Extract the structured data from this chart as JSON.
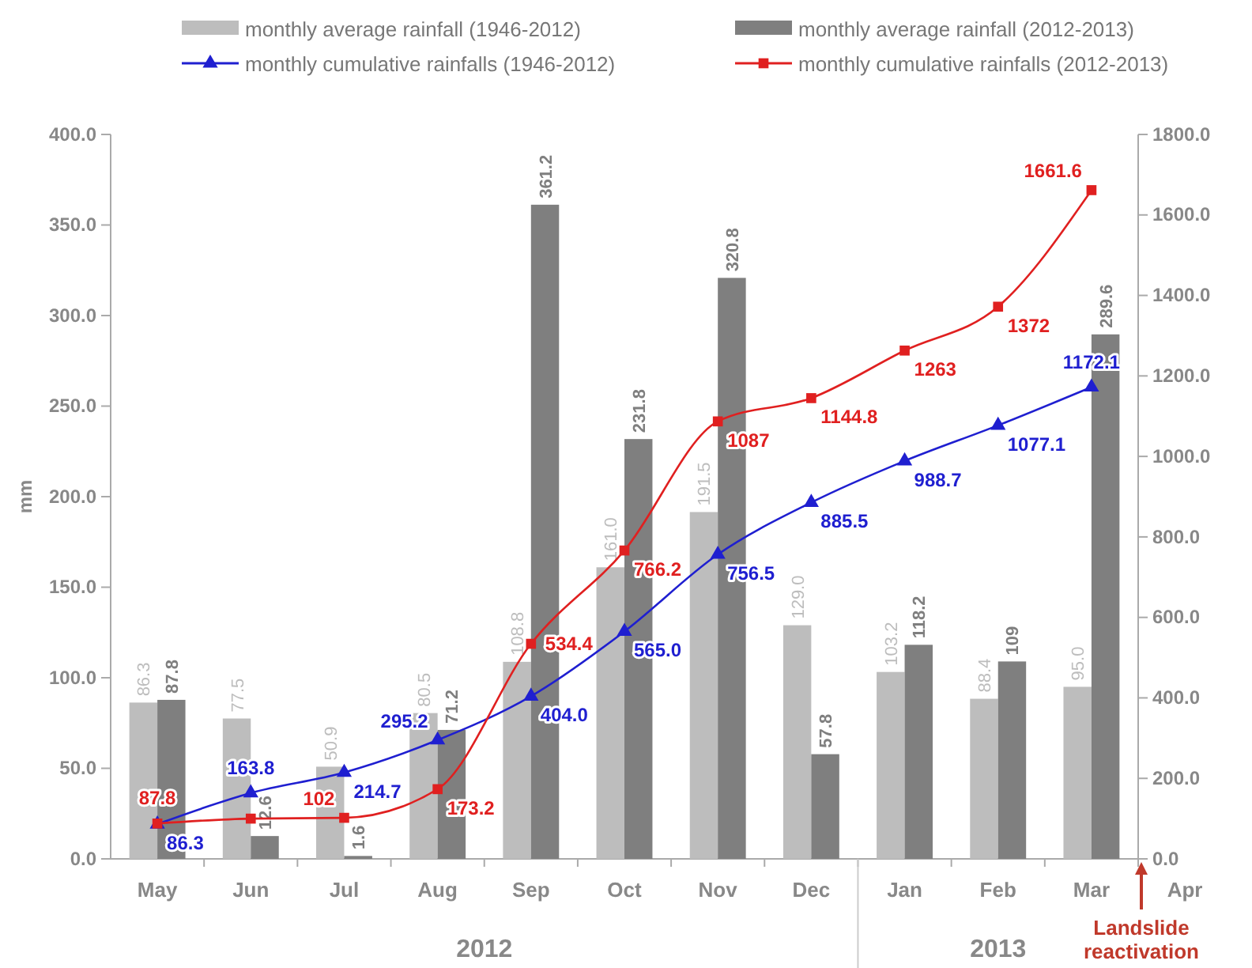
{
  "chart_data": {
    "type": "bar",
    "ylabel": "mm",
    "categories": [
      "May",
      "Jun",
      "Jul",
      "Aug",
      "Sep",
      "Oct",
      "Nov",
      "Dec",
      "Jan",
      "Feb",
      "Mar",
      "Apr"
    ],
    "series": [
      {
        "name": "monthly average rainfall (1946-2012)",
        "color": "#bdbdbd",
        "values": [
          86.3,
          77.5,
          50.9,
          80.5,
          108.8,
          161.0,
          191.5,
          129.0,
          103.2,
          88.4,
          95.0,
          null
        ],
        "value_labels": [
          "86.3",
          "77.5",
          "50.9",
          "80.5",
          "108.8",
          "161.0",
          "191.5",
          "129.0",
          "103.2",
          "88.4",
          "95.0",
          null
        ]
      },
      {
        "name": "monthly average rainfall (2012-2013)",
        "color": "#7f7f7f",
        "values": [
          87.8,
          12.6,
          1.6,
          71.2,
          361.2,
          231.8,
          320.8,
          57.8,
          118.2,
          109,
          289.6,
          null
        ],
        "value_labels": [
          "87.8",
          "12.6",
          "1.6",
          "71.2",
          "361.2",
          "231.8",
          "320.8",
          "57.8",
          "118.2",
          "109",
          "289.6",
          null
        ]
      },
      {
        "name": "monthly cumulative rainfalls (1946-2012)",
        "type": "line",
        "axis": "y2",
        "marker": "triangle",
        "color": "#1f1fd0",
        "values": [
          86.3,
          163.8,
          214.7,
          295.2,
          404.0,
          565.0,
          756.5,
          885.5,
          988.7,
          1077.1,
          1172.1,
          null
        ],
        "value_labels": [
          "86.3",
          "163.8",
          "214.7",
          "295.2",
          "404.0",
          "565.0",
          "756.5",
          "885.5",
          "988.7",
          "1077.1",
          "1172.1",
          null
        ]
      },
      {
        "name": "monthly cumulative rainfalls (2012-2013)",
        "type": "line",
        "axis": "y2",
        "marker": "square",
        "color": "#e02020",
        "values": [
          87.8,
          100,
          102,
          173.2,
          534.4,
          766.2,
          1087,
          1144.8,
          1263,
          1372,
          1661.6,
          null
        ],
        "value_labels": [
          "87.8",
          null,
          "102",
          "173.2",
          "534.4",
          "766.2",
          "1087",
          "1144.8",
          "1263",
          "1372",
          "1661.6",
          null
        ]
      }
    ],
    "ylim": [
      0,
      400
    ],
    "yticks": [
      {
        "value": 0,
        "label": "0.0"
      },
      {
        "value": 50,
        "label": "50.0"
      },
      {
        "value": 100,
        "label": "100.0"
      },
      {
        "value": 150,
        "label": "150.0"
      },
      {
        "value": 200,
        "label": "200.0"
      },
      {
        "value": 250,
        "label": "250.0"
      },
      {
        "value": 300,
        "label": "300.0"
      },
      {
        "value": 350,
        "label": "350.0"
      },
      {
        "value": 400,
        "label": "400.0"
      }
    ],
    "y2lim": [
      0,
      1800
    ],
    "y2ticks": [
      {
        "value": 0,
        "label": "0.0"
      },
      {
        "value": 200,
        "label": "200.0"
      },
      {
        "value": 400,
        "label": "400.0"
      },
      {
        "value": 600,
        "label": "600.0"
      },
      {
        "value": 800,
        "label": "800.0"
      },
      {
        "value": 1000,
        "label": "1000.0"
      },
      {
        "value": 1200,
        "label": "1200.0"
      },
      {
        "value": 1400,
        "label": "1400.0"
      },
      {
        "value": 1600,
        "label": "1600.0"
      },
      {
        "value": 1800,
        "label": "1800.0"
      }
    ],
    "annotations": [
      "2012",
      "2013",
      "Landslide reactivation"
    ],
    "legend": "top",
    "grid": false,
    "line_style": "solid"
  }
}
